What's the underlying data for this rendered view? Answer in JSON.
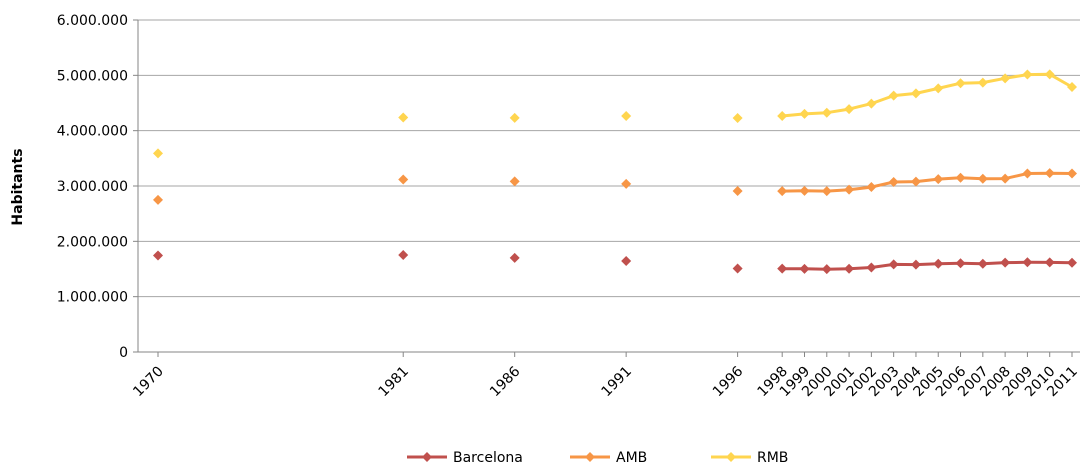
{
  "chart_data": {
    "type": "line",
    "title": "",
    "xlabel": "",
    "ylabel": "Habitants",
    "ylim": [
      0,
      6000000
    ],
    "y_ticks": [
      0,
      1000000,
      2000000,
      3000000,
      4000000,
      5000000,
      6000000
    ],
    "y_tick_labels": [
      "0",
      "1.000.000",
      "2.000.000",
      "3.000.000",
      "4.000.000",
      "5.000.000",
      "6.000.000"
    ],
    "x": [
      "1970",
      "1981",
      "1986",
      "1991",
      "1996",
      "1998",
      "1999",
      "2000",
      "2001",
      "2002",
      "2003",
      "2004",
      "2005",
      "2006",
      "2007",
      "2008",
      "2009",
      "2010",
      "2011"
    ],
    "line_start_year": "1998",
    "grid": true,
    "legend_position": "bottom",
    "series": [
      {
        "name": "Barcelona",
        "color": "#c0504d",
        "values": [
          1745000,
          1752000,
          1701000,
          1644000,
          1508000,
          1506000,
          1503000,
          1497000,
          1505000,
          1528000,
          1583000,
          1579000,
          1594000,
          1605000,
          1595000,
          1615000,
          1621000,
          1619000,
          1612000
        ]
      },
      {
        "name": "AMB",
        "color": "#f79646",
        "values": [
          2750000,
          3117000,
          3083000,
          3038000,
          2910000,
          2907000,
          2913000,
          2908000,
          2934000,
          2981000,
          3072000,
          3080000,
          3125000,
          3148000,
          3130000,
          3133000,
          3226000,
          3232000,
          3226000
        ]
      },
      {
        "name": "RMB",
        "color": "#ffd54f",
        "values": [
          3590000,
          4238000,
          4232000,
          4264000,
          4228000,
          4265000,
          4303000,
          4324000,
          4390000,
          4489000,
          4633000,
          4673000,
          4764000,
          4857000,
          4868000,
          4946000,
          5014000,
          5018000,
          4790000
        ]
      }
    ]
  }
}
